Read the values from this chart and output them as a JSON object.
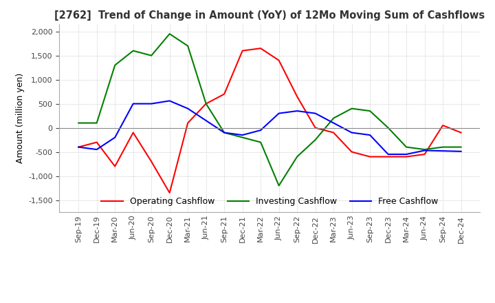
{
  "title": "[2762]  Trend of Change in Amount (YoY) of 12Mo Moving Sum of Cashflows",
  "ylabel": "Amount (million yen)",
  "x_labels": [
    "Sep-19",
    "Dec-19",
    "Mar-20",
    "Jun-20",
    "Sep-20",
    "Dec-20",
    "Mar-21",
    "Jun-21",
    "Sep-21",
    "Dec-21",
    "Mar-22",
    "Jun-22",
    "Sep-22",
    "Dec-22",
    "Mar-23",
    "Jun-23",
    "Sep-23",
    "Dec-23",
    "Mar-24",
    "Jun-24",
    "Sep-24",
    "Dec-24"
  ],
  "operating": [
    -400,
    -300,
    -800,
    -100,
    -700,
    -1350,
    100,
    500,
    700,
    1600,
    1650,
    1400,
    650,
    0,
    -100,
    -500,
    -600,
    -600,
    -600,
    -550,
    50,
    -100
  ],
  "investing": [
    100,
    100,
    1300,
    1600,
    1500,
    1950,
    1700,
    500,
    -100,
    -200,
    -300,
    -1200,
    -600,
    -250,
    200,
    400,
    350,
    0,
    -400,
    -450,
    -400,
    -400
  ],
  "free": [
    -400,
    -450,
    -200,
    500,
    500,
    560,
    400,
    150,
    -100,
    -150,
    -50,
    300,
    350,
    300,
    100,
    -100,
    -150,
    -550,
    -550,
    -470,
    -480,
    -490
  ],
  "ylim": [
    -1750,
    2150
  ],
  "yticks": [
    -1500,
    -1000,
    -500,
    0,
    500,
    1000,
    1500,
    2000
  ],
  "operating_color": "#ff0000",
  "investing_color": "#008000",
  "free_color": "#0000ff",
  "bg_color": "#ffffff",
  "grid_color": "#aaaaaa",
  "title_color": "#333333"
}
